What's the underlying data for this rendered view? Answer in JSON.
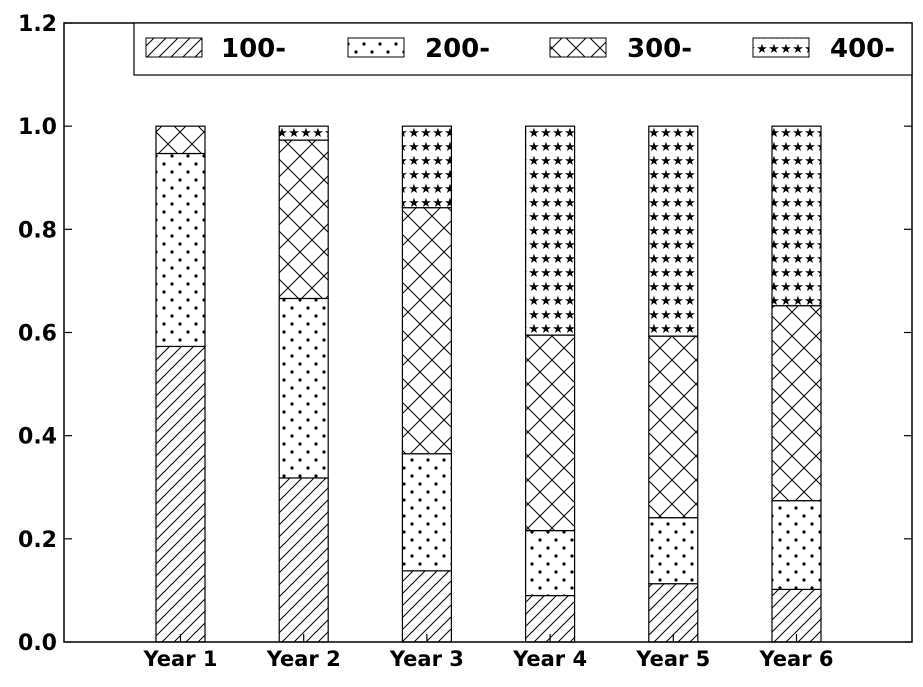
{
  "chart_data": {
    "type": "bar",
    "stacked": true,
    "categories": [
      "Year 1",
      "Year 2",
      "Year 3",
      "Year 4",
      "Year 5",
      "Year 6"
    ],
    "series": [
      {
        "name": "100-",
        "pattern": "diagonal-hatch",
        "values": [
          0.573,
          0.318,
          0.138,
          0.09,
          0.113,
          0.102
        ]
      },
      {
        "name": "200-",
        "pattern": "dots",
        "values": [
          0.374,
          0.348,
          0.227,
          0.126,
          0.128,
          0.172
        ]
      },
      {
        "name": "300-",
        "pattern": "cross-hatch",
        "values": [
          0.053,
          0.307,
          0.477,
          0.379,
          0.352,
          0.378
        ]
      },
      {
        "name": "400-",
        "pattern": "stars",
        "values": [
          0.0,
          0.027,
          0.158,
          0.405,
          0.407,
          0.348
        ]
      }
    ],
    "ylim": [
      0,
      1.2
    ],
    "yticks": [
      "0.0",
      "0.2",
      "0.4",
      "0.6",
      "0.8",
      "1.0",
      "1.2"
    ],
    "ytick_values": [
      0,
      0.2,
      0.4,
      0.6,
      0.8,
      1.0,
      1.2
    ],
    "title": "",
    "xlabel": "",
    "ylabel": "",
    "grid": false,
    "legend_position": "top",
    "colors": {
      "fill": "#ffffff",
      "stroke": "#000000"
    }
  }
}
